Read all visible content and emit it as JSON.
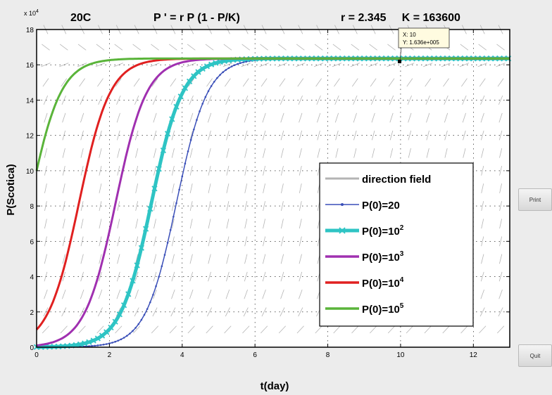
{
  "header": {
    "temperature": "20C",
    "equation": "P ' = r P (1 - P/K)",
    "params": "r = 2.345     K = 163600"
  },
  "buttons": {
    "print": "Print",
    "quit": "Quit"
  },
  "datatip": {
    "x_text": "X: 10",
    "y_text": "Y: 1.636e+005"
  },
  "chart_data": {
    "type": "line",
    "title": "",
    "xlabel": "t(day)",
    "ylabel": "P(Scotica)",
    "y_exponent_label": "x 10^4",
    "xlim": [
      0,
      13
    ],
    "ylim": [
      0,
      180000
    ],
    "x_ticks": [
      0,
      2,
      4,
      6,
      8,
      10,
      12
    ],
    "y_ticks": [
      0,
      20000,
      40000,
      60000,
      80000,
      100000,
      120000,
      140000,
      160000,
      180000
    ],
    "y_tick_labels": [
      "0",
      "2",
      "4",
      "6",
      "8",
      "10",
      "12",
      "14",
      "16",
      "18"
    ],
    "grid": true,
    "legend_position": "right",
    "model": {
      "r": 2.345,
      "K": 163600
    },
    "series": [
      {
        "name": "direction field",
        "color": "#b4b4b4",
        "style": "dashed-field"
      },
      {
        "name": "P(0)=20",
        "color": "#3a4fb8",
        "p0": 20,
        "style": "line-dots"
      },
      {
        "name": "P(0)=10^2",
        "label_base": "P(0)=10",
        "label_exp": "2",
        "color": "#2ec4c4",
        "p0": 100,
        "style": "thick-x"
      },
      {
        "name": "P(0)=10^3",
        "label_base": "P(0)=10",
        "label_exp": "3",
        "color": "#a030b0",
        "p0": 1000,
        "style": "line"
      },
      {
        "name": "P(0)=10^4",
        "label_base": "P(0)=10",
        "label_exp": "4",
        "color": "#e02020",
        "p0": 10000,
        "style": "line"
      },
      {
        "name": "P(0)=10^5",
        "label_base": "P(0)=10",
        "label_exp": "5",
        "color": "#5ab43a",
        "p0": 100000,
        "style": "line"
      }
    ]
  }
}
